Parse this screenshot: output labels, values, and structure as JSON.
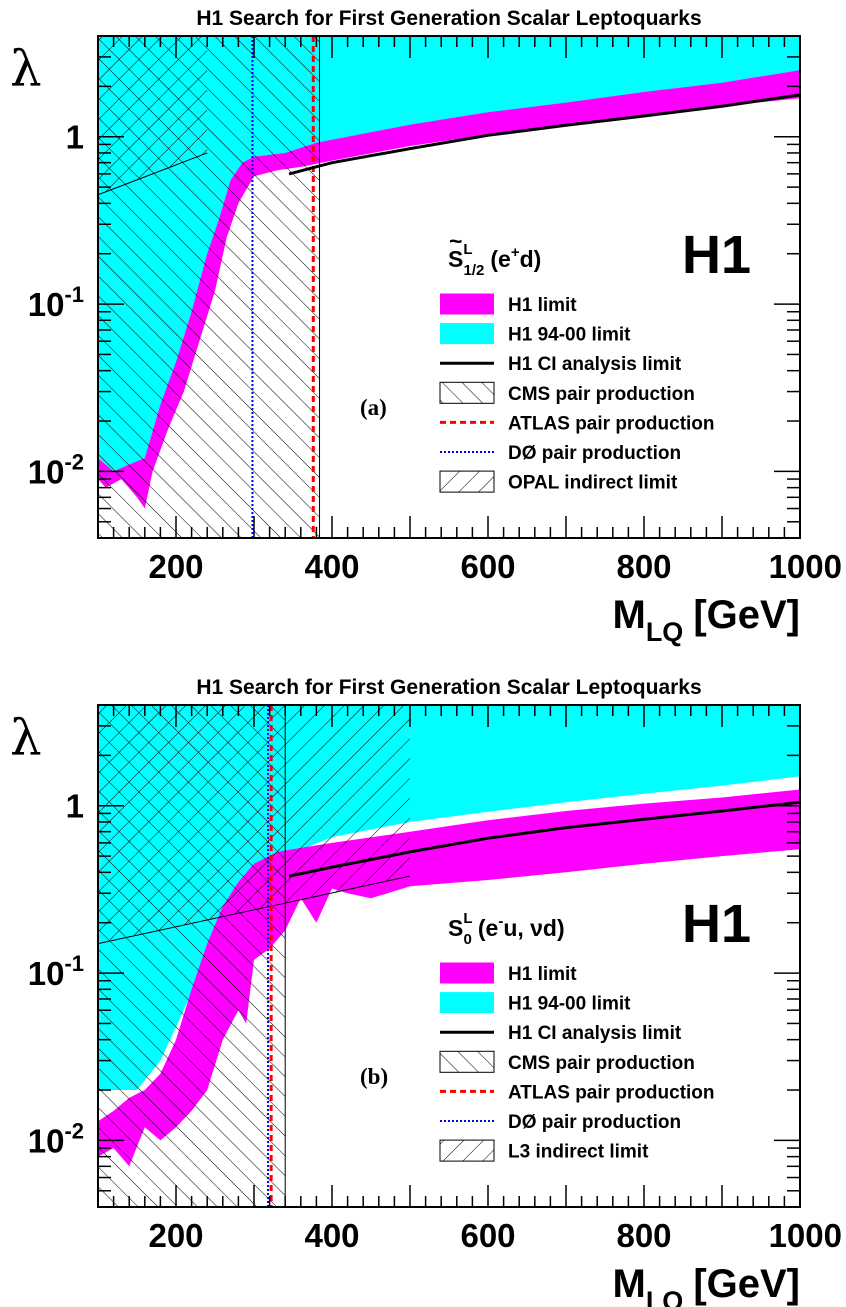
{
  "chart_data": [
    {
      "type": "area",
      "title": "H1 Search for First Generation Scalar Leptoquarks",
      "panel_label": "(a)",
      "experiment_label": "H1",
      "model": {
        "prefix": "S",
        "tilde": true,
        "sup": "L",
        "sub": "1/2",
        "process_pre": "(e",
        "process_sup": "+",
        "process_post": "d)"
      },
      "xlabel": {
        "main": "M",
        "sub": "LQ",
        "rest": "[GeV]"
      },
      "ylabel": "λ",
      "xlim": [
        100,
        1000
      ],
      "ylim": [
        0.004,
        4
      ],
      "ylog": true,
      "x_ticks": [
        {
          "v": 200,
          "label": "200"
        },
        {
          "v": 400,
          "label": "400"
        },
        {
          "v": 600,
          "label": "600"
        },
        {
          "v": 800,
          "label": "800"
        },
        {
          "v": 1000,
          "label": "1000"
        }
      ],
      "y_ticks": [
        {
          "v": 1,
          "base": "1",
          "exp": ""
        },
        {
          "v": 0.1,
          "base": "10",
          "exp": "-1"
        },
        {
          "v": 0.01,
          "base": "10",
          "exp": "-2"
        }
      ],
      "legend": [
        {
          "key": "h1",
          "label": "H1 limit"
        },
        {
          "key": "h194",
          "label": "H1 94-00 limit"
        },
        {
          "key": "ci",
          "label": "H1 CI analysis limit"
        },
        {
          "key": "cms",
          "label": "CMS pair production"
        },
        {
          "key": "atlas",
          "label": "ATLAS pair production"
        },
        {
          "key": "d0",
          "label": "DØ pair production"
        },
        {
          "key": "ind",
          "label": "OPAL indirect limit"
        }
      ],
      "series": {
        "h1_94_00_limit": [
          [
            100,
            0.011
          ],
          [
            150,
            0.009
          ],
          [
            180,
            0.02
          ],
          [
            210,
            0.06
          ],
          [
            240,
            0.15
          ],
          [
            260,
            0.3
          ],
          [
            280,
            0.55
          ],
          [
            300,
            0.65
          ],
          [
            400,
            0.85
          ],
          [
            500,
            1.0
          ],
          [
            600,
            1.15
          ],
          [
            700,
            1.35
          ],
          [
            800,
            1.55
          ],
          [
            900,
            1.8
          ],
          [
            1000,
            2.05
          ]
        ],
        "h1_limit_upper": [
          [
            100,
            0.012
          ],
          [
            120,
            0.01
          ],
          [
            140,
            0.011
          ],
          [
            160,
            0.012
          ],
          [
            180,
            0.025
          ],
          [
            200,
            0.045
          ],
          [
            220,
            0.09
          ],
          [
            240,
            0.2
          ],
          [
            255,
            0.32
          ],
          [
            270,
            0.55
          ],
          [
            285,
            0.7
          ],
          [
            300,
            0.76
          ],
          [
            340,
            0.8
          ],
          [
            380,
            0.92
          ],
          [
            500,
            1.18
          ],
          [
            600,
            1.4
          ],
          [
            700,
            1.6
          ],
          [
            800,
            1.85
          ],
          [
            900,
            2.1
          ],
          [
            1000,
            2.5
          ]
        ],
        "h1_limit_lower": [
          [
            1000,
            1.7
          ],
          [
            900,
            1.52
          ],
          [
            800,
            1.32
          ],
          [
            700,
            1.17
          ],
          [
            600,
            1.03
          ],
          [
            500,
            0.88
          ],
          [
            400,
            0.72
          ],
          [
            360,
            0.66
          ],
          [
            330,
            0.63
          ],
          [
            300,
            0.58
          ],
          [
            280,
            0.4
          ],
          [
            265,
            0.25
          ],
          [
            250,
            0.12
          ],
          [
            230,
            0.06
          ],
          [
            210,
            0.03
          ],
          [
            190,
            0.018
          ],
          [
            170,
            0.01
          ],
          [
            160,
            0.006
          ],
          [
            150,
            0.007
          ],
          [
            130,
            0.009
          ],
          [
            110,
            0.008
          ],
          [
            100,
            0.009
          ]
        ],
        "ci_limit": [
          [
            345,
            0.6
          ],
          [
            400,
            0.7
          ],
          [
            500,
            0.85
          ],
          [
            600,
            1.02
          ],
          [
            700,
            1.17
          ],
          [
            800,
            1.33
          ],
          [
            900,
            1.52
          ],
          [
            1000,
            1.78
          ]
        ]
      },
      "cms_exclusion_max_mass": 384,
      "atlas_pair_mass": 376,
      "d0_pair_mass": 298,
      "indirect": {
        "x_max": 240,
        "y_left": 0.45,
        "y_right": 0.8
      }
    },
    {
      "type": "area",
      "title": "H1 Search for First Generation Scalar Leptoquarks",
      "panel_label": "(b)",
      "experiment_label": "H1",
      "model": {
        "prefix": "S",
        "tilde": false,
        "sup": "L",
        "sub": "0",
        "process_pre": "(e",
        "process_sup": "-",
        "process_post": "u, νd)"
      },
      "xlabel": {
        "main": "M",
        "sub": "LQ",
        "rest": "[GeV]"
      },
      "ylabel": "λ",
      "xlim": [
        100,
        1000
      ],
      "ylim": [
        0.004,
        4
      ],
      "ylog": true,
      "x_ticks": [
        {
          "v": 200,
          "label": "200"
        },
        {
          "v": 400,
          "label": "400"
        },
        {
          "v": 600,
          "label": "600"
        },
        {
          "v": 800,
          "label": "800"
        },
        {
          "v": 1000,
          "label": "1000"
        }
      ],
      "y_ticks": [
        {
          "v": 1,
          "base": "1",
          "exp": ""
        },
        {
          "v": 0.1,
          "base": "10",
          "exp": "-1"
        },
        {
          "v": 0.01,
          "base": "10",
          "exp": "-2"
        }
      ],
      "legend": [
        {
          "key": "h1",
          "label": "H1 limit"
        },
        {
          "key": "h194",
          "label": "H1 94-00 limit"
        },
        {
          "key": "ci",
          "label": "H1 CI analysis limit"
        },
        {
          "key": "cms",
          "label": "CMS pair production"
        },
        {
          "key": "atlas",
          "label": "ATLAS pair production"
        },
        {
          "key": "d0",
          "label": "DØ pair production"
        },
        {
          "key": "ind",
          "label": "L3 indirect limit"
        }
      ],
      "series": {
        "h1_94_00_limit": [
          [
            100,
            0.02
          ],
          [
            150,
            0.02
          ],
          [
            180,
            0.03
          ],
          [
            210,
            0.06
          ],
          [
            240,
            0.13
          ],
          [
            270,
            0.24
          ],
          [
            290,
            0.33
          ],
          [
            310,
            0.4
          ],
          [
            340,
            0.5
          ],
          [
            400,
            0.65
          ],
          [
            500,
            0.8
          ],
          [
            600,
            0.92
          ],
          [
            700,
            1.05
          ],
          [
            800,
            1.18
          ],
          [
            900,
            1.32
          ],
          [
            1000,
            1.5
          ]
        ],
        "h1_limit_upper": [
          [
            100,
            0.013
          ],
          [
            120,
            0.015
          ],
          [
            140,
            0.018
          ],
          [
            160,
            0.02
          ],
          [
            180,
            0.025
          ],
          [
            200,
            0.04
          ],
          [
            220,
            0.08
          ],
          [
            240,
            0.15
          ],
          [
            260,
            0.25
          ],
          [
            280,
            0.35
          ],
          [
            300,
            0.45
          ],
          [
            330,
            0.53
          ],
          [
            360,
            0.56
          ],
          [
            400,
            0.6
          ],
          [
            500,
            0.7
          ],
          [
            600,
            0.82
          ],
          [
            700,
            0.93
          ],
          [
            800,
            1.03
          ],
          [
            900,
            1.12
          ],
          [
            1000,
            1.25
          ]
        ],
        "h1_limit_lower": [
          [
            1000,
            0.55
          ],
          [
            900,
            0.5
          ],
          [
            800,
            0.45
          ],
          [
            700,
            0.4
          ],
          [
            600,
            0.36
          ],
          [
            500,
            0.33
          ],
          [
            450,
            0.28
          ],
          [
            420,
            0.3
          ],
          [
            400,
            0.32
          ],
          [
            380,
            0.2
          ],
          [
            360,
            0.28
          ],
          [
            340,
            0.18
          ],
          [
            320,
            0.14
          ],
          [
            300,
            0.12
          ],
          [
            290,
            0.05
          ],
          [
            280,
            0.06
          ],
          [
            260,
            0.04
          ],
          [
            240,
            0.02
          ],
          [
            220,
            0.015
          ],
          [
            200,
            0.012
          ],
          [
            180,
            0.01
          ],
          [
            160,
            0.012
          ],
          [
            140,
            0.007
          ],
          [
            120,
            0.009
          ],
          [
            100,
            0.008
          ]
        ],
        "ci_limit": [
          [
            345,
            0.38
          ],
          [
            400,
            0.43
          ],
          [
            500,
            0.53
          ],
          [
            600,
            0.64
          ],
          [
            700,
            0.74
          ],
          [
            800,
            0.83
          ],
          [
            900,
            0.93
          ],
          [
            1000,
            1.05
          ]
        ]
      },
      "cms_exclusion_max_mass": 340,
      "atlas_pair_mass": 322,
      "d0_pair_mass": 318,
      "indirect": {
        "x_max": 500,
        "y_left": 0.15,
        "y_right": 0.38
      }
    }
  ],
  "colors": {
    "h1_limit": "#ff00ff",
    "h1_94_00_limit": "#00ffff",
    "ci_line": "#000000",
    "atlas_line": "#ff0000",
    "d0_line": "#0000ff",
    "hatch": "#000000",
    "axis": "#000000"
  }
}
